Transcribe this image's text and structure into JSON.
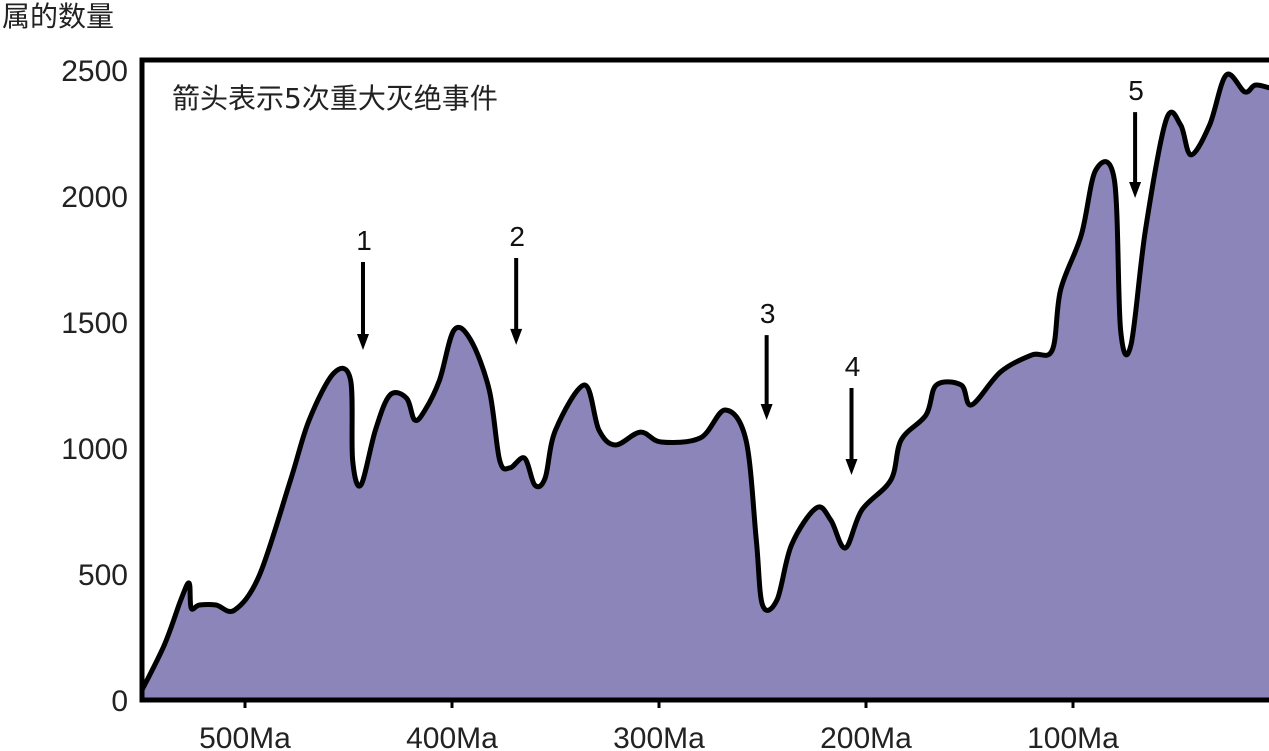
{
  "chart_data": {
    "type": "area",
    "title": "",
    "ylabel": "属的数量",
    "xlabel": "",
    "annotation": "箭头表示5次重大灭绝事件",
    "ylim": [
      0,
      2500
    ],
    "xlim": [
      551,
      0
    ],
    "yticks": [
      0,
      500,
      1000,
      1500,
      2000,
      2500
    ],
    "xticks": [
      500,
      400,
      300,
      200,
      100
    ],
    "xtick_labels": [
      "500Ma",
      "400Ma",
      "300Ma",
      "200Ma",
      "100Ma"
    ],
    "fill_color": "#8B85BA",
    "line_color": "#000000",
    "points": [
      [
        551,
        20
      ],
      [
        539,
        218
      ],
      [
        531,
        397
      ],
      [
        527,
        464
      ],
      [
        526,
        365
      ],
      [
        522,
        377
      ],
      [
        514,
        377
      ],
      [
        505,
        357
      ],
      [
        493,
        496
      ],
      [
        478,
        873
      ],
      [
        469,
        1111
      ],
      [
        457,
        1298
      ],
      [
        449,
        1270
      ],
      [
        448,
        952
      ],
      [
        444,
        853
      ],
      [
        437,
        1071
      ],
      [
        430,
        1210
      ],
      [
        422,
        1198
      ],
      [
        418,
        1111
      ],
      [
        413,
        1151
      ],
      [
        406,
        1270
      ],
      [
        399,
        1468
      ],
      [
        391,
        1429
      ],
      [
        382,
        1230
      ],
      [
        377,
        952
      ],
      [
        372,
        921
      ],
      [
        365,
        960
      ],
      [
        360,
        853
      ],
      [
        355,
        881
      ],
      [
        350,
        1071
      ],
      [
        336,
        1250
      ],
      [
        329,
        1071
      ],
      [
        321,
        1012
      ],
      [
        309,
        1063
      ],
      [
        299,
        1024
      ],
      [
        280,
        1040
      ],
      [
        268,
        1151
      ],
      [
        258,
        1032
      ],
      [
        253,
        635
      ],
      [
        250,
        377
      ],
      [
        243,
        397
      ],
      [
        236,
        615
      ],
      [
        224,
        762
      ],
      [
        217,
        714
      ],
      [
        210,
        603
      ],
      [
        202,
        754
      ],
      [
        188,
        873
      ],
      [
        183,
        1032
      ],
      [
        171,
        1131
      ],
      [
        166,
        1250
      ],
      [
        154,
        1250
      ],
      [
        149,
        1171
      ],
      [
        135,
        1302
      ],
      [
        120,
        1369
      ],
      [
        110,
        1389
      ],
      [
        106,
        1627
      ],
      [
        96,
        1845
      ],
      [
        89,
        2103
      ],
      [
        80,
        2063
      ],
      [
        77,
        1468
      ],
      [
        72,
        1409
      ],
      [
        65,
        1865
      ],
      [
        55,
        2302
      ],
      [
        48,
        2282
      ],
      [
        43,
        2163
      ],
      [
        34,
        2282
      ],
      [
        26,
        2480
      ],
      [
        17,
        2413
      ],
      [
        12,
        2440
      ],
      [
        5,
        2429
      ]
    ],
    "extinction_events": [
      {
        "label": "1",
        "ma": 443,
        "from": 1738,
        "to": 1389
      },
      {
        "label": "2",
        "ma": 369,
        "from": 1754,
        "to": 1409
      },
      {
        "label": "3",
        "ma": 248,
        "from": 1448,
        "to": 1111
      },
      {
        "label": "4",
        "ma": 207,
        "from": 1238,
        "to": 893
      },
      {
        "label": "5",
        "ma": 70,
        "from": 2333,
        "to": 1992
      }
    ]
  }
}
